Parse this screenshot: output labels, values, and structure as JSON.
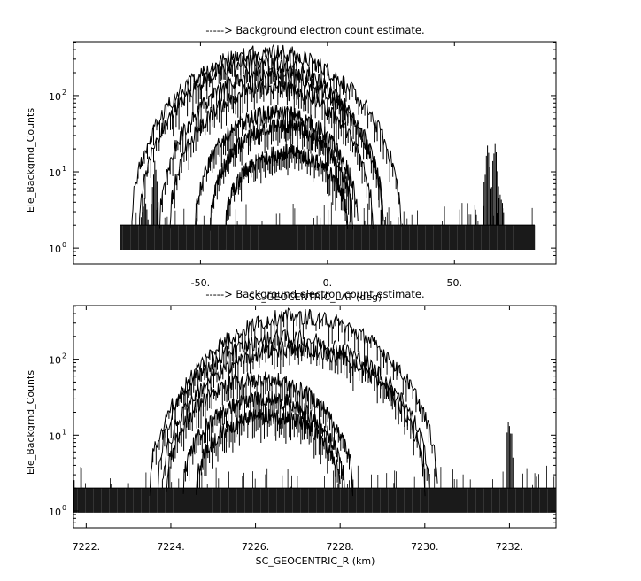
{
  "chart_data": [
    {
      "type": "line",
      "title": "-----> Background electron count estimate.",
      "xlabel": "SC_GEOCENTRIC_LAT (deg)",
      "ylabel": "Ele_Backgrnd_Counts",
      "xlim": [
        -100,
        90
      ],
      "ylim_log": [
        0.62,
        510
      ],
      "yscale": "log",
      "x_ticks": [
        {
          "value": -50,
          "label": "-50."
        },
        {
          "value": 0,
          "label": "0."
        },
        {
          "value": 50,
          "label": "50."
        }
      ],
      "y_ticks": [
        {
          "value": 1,
          "base": "10",
          "exp": "0"
        },
        {
          "value": 10,
          "base": "10",
          "exp": "1"
        },
        {
          "value": 100,
          "base": "10",
          "exp": "2"
        }
      ],
      "noise_floor": {
        "x_range": [
          -81.6,
          81.6
        ],
        "low": 0.95,
        "high": 2.0,
        "spike_max": 4.0
      },
      "bursts": [
        {
          "x": -68,
          "peak": 14
        },
        {
          "x": -72,
          "peak": 4.5
        },
        {
          "x": 63,
          "peak": 24
        },
        {
          "x": 66,
          "peak": 26
        },
        {
          "x": 68,
          "peak": 6
        }
      ],
      "series": [
        {
          "center": -24,
          "halfwidth": 53,
          "peak": 380
        },
        {
          "center": -26,
          "halfwidth": 48,
          "peak": 280
        },
        {
          "center": -22,
          "halfwidth": 44,
          "peak": 200
        },
        {
          "center": -22,
          "halfwidth": 40,
          "peak": 130
        },
        {
          "center": -20,
          "halfwidth": 32,
          "peak": 60
        },
        {
          "center": -18,
          "halfwidth": 28,
          "peak": 40
        },
        {
          "center": -16,
          "halfwidth": 24,
          "peak": 18
        }
      ]
    },
    {
      "type": "line",
      "title": "-----> Background electron count estimate.",
      "xlabel": "SC_GEOCENTRIC_R (km)",
      "ylabel": "Ele_Backgrnd_Counts",
      "xlim": [
        7221.7,
        7233.1
      ],
      "ylim_log": [
        0.6,
        510
      ],
      "yscale": "log",
      "x_ticks": [
        {
          "value": 7222,
          "label": "7222."
        },
        {
          "value": 7224,
          "label": "7224."
        },
        {
          "value": 7226,
          "label": "7226."
        },
        {
          "value": 7228,
          "label": "7228."
        },
        {
          "value": 7230,
          "label": "7230."
        },
        {
          "value": 7232,
          "label": "7232."
        }
      ],
      "y_ticks": [
        {
          "value": 1,
          "base": "10",
          "exp": "0"
        },
        {
          "value": 10,
          "base": "10",
          "exp": "1"
        },
        {
          "value": 100,
          "base": "10",
          "exp": "2"
        }
      ],
      "noise_floor": {
        "x_range": [
          7221.7,
          7233.1
        ],
        "low": 0.95,
        "high": 2.0,
        "spike_max": 4.0
      },
      "bursts": [
        {
          "x": 7232.0,
          "peak": 20
        }
      ],
      "series": [
        {
          "center": 7227.0,
          "halfwidth": 3.3,
          "peak": 370
        },
        {
          "center": 7226.8,
          "halfwidth": 3.3,
          "peak": 190
        },
        {
          "center": 7226.9,
          "halfwidth": 3.1,
          "peak": 140
        },
        {
          "center": 7226.1,
          "halfwidth": 2.2,
          "peak": 55
        },
        {
          "center": 7226.2,
          "halfwidth": 1.9,
          "peak": 30
        },
        {
          "center": 7226.3,
          "halfwidth": 1.7,
          "peak": 18
        }
      ]
    }
  ]
}
